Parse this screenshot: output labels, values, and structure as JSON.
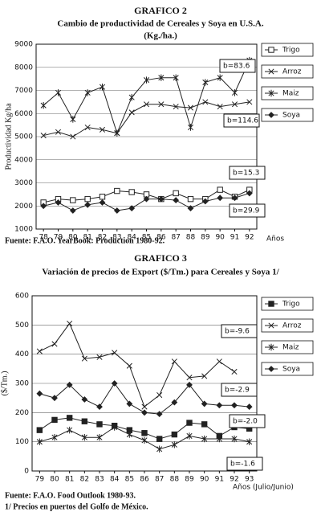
{
  "chart_data": [
    {
      "type": "line",
      "title": "GRAFICO 2",
      "subtitle": "Cambio de productividad de Cereales y Soya en U.S.A.",
      "unit": "(Kg./ha.)",
      "y_label": "Productividad Kg/ha",
      "x_label": "Años",
      "categories": [
        "78",
        "79",
        "80",
        "81",
        "82",
        "83",
        "84",
        "85",
        "86",
        "87",
        "88",
        "89",
        "90",
        "91",
        "92"
      ],
      "ylim": [
        1000,
        9000
      ],
      "yticks": [
        1000,
        2000,
        3000,
        4000,
        5000,
        6000,
        7000,
        8000,
        9000
      ],
      "grid": true,
      "series": [
        {
          "name": "Trigo",
          "marker": "square",
          "color": "#222",
          "values": [
            2150,
            2300,
            2250,
            2300,
            2400,
            2650,
            2600,
            2500,
            2300,
            2550,
            2300,
            2300,
            2700,
            2400,
            2700
          ]
        },
        {
          "name": "Arroz",
          "marker": "x",
          "color": "#222",
          "values": [
            5050,
            5200,
            5000,
            5400,
            5300,
            5150,
            6050,
            6400,
            6400,
            6300,
            6250,
            6500,
            6300,
            6400,
            6500
          ]
        },
        {
          "name": "Maiz",
          "marker": "asterisk",
          "color": "#222",
          "values": [
            6350,
            6900,
            5750,
            6900,
            7150,
            5150,
            6700,
            7450,
            7550,
            7550,
            5400,
            7350,
            7550,
            6900,
            8300
          ]
        },
        {
          "name": "Soya",
          "marker": "diamond",
          "color": "#222",
          "values": [
            2000,
            2150,
            1800,
            2050,
            2150,
            1800,
            1900,
            2300,
            2300,
            2250,
            1900,
            2200,
            2350,
            2350,
            2550
          ]
        }
      ],
      "annotations": [
        "b=83.6",
        "b=114.6",
        "b=15.3",
        "b=29.9"
      ],
      "notes": [
        "Fuente: F.A.O. YearBook: Production 1980-92."
      ]
    },
    {
      "type": "line",
      "title": "GRAFICO 3",
      "subtitle": "Variación de precios de Export ($/Tm.) para Cereales y Soya 1/",
      "y_label": "($/Tm.)",
      "x_label": "Años (Julio/Junio)",
      "categories": [
        "79",
        "80",
        "81",
        "82",
        "83",
        "84",
        "85",
        "86",
        "87",
        "88",
        "89",
        "90",
        "91",
        "92",
        "93"
      ],
      "ylim": [
        0,
        600
      ],
      "yticks": [
        0,
        100,
        200,
        300,
        400,
        500,
        600
      ],
      "grid": true,
      "series": [
        {
          "name": "Trigo",
          "marker": "filled-square",
          "color": "#222",
          "values": [
            140,
            175,
            182,
            170,
            160,
            155,
            140,
            130,
            110,
            125,
            165,
            160,
            120,
            150,
            145
          ]
        },
        {
          "name": "Arroz",
          "marker": "x",
          "color": "#222",
          "values": [
            410,
            435,
            505,
            385,
            390,
            405,
            360,
            220,
            260,
            375,
            320,
            325,
            375,
            340,
            null
          ]
        },
        {
          "name": "Maiz",
          "marker": "asterisk",
          "color": "#222",
          "values": [
            100,
            115,
            140,
            115,
            115,
            150,
            125,
            105,
            75,
            90,
            120,
            110,
            110,
            110,
            100
          ]
        },
        {
          "name": "Soya",
          "marker": "diamond",
          "color": "#222",
          "values": [
            265,
            250,
            295,
            245,
            220,
            300,
            230,
            200,
            195,
            235,
            295,
            230,
            225,
            225,
            220
          ]
        }
      ],
      "annotations": [
        "b=-9.6",
        "b=-2.9",
        "b=-2.0",
        "b=-1.6"
      ],
      "notes": [
        "Fuente: F.A.O. Food Outlook 1980-93.",
        "1/ Precios en puertos del Golfo de México."
      ]
    }
  ]
}
